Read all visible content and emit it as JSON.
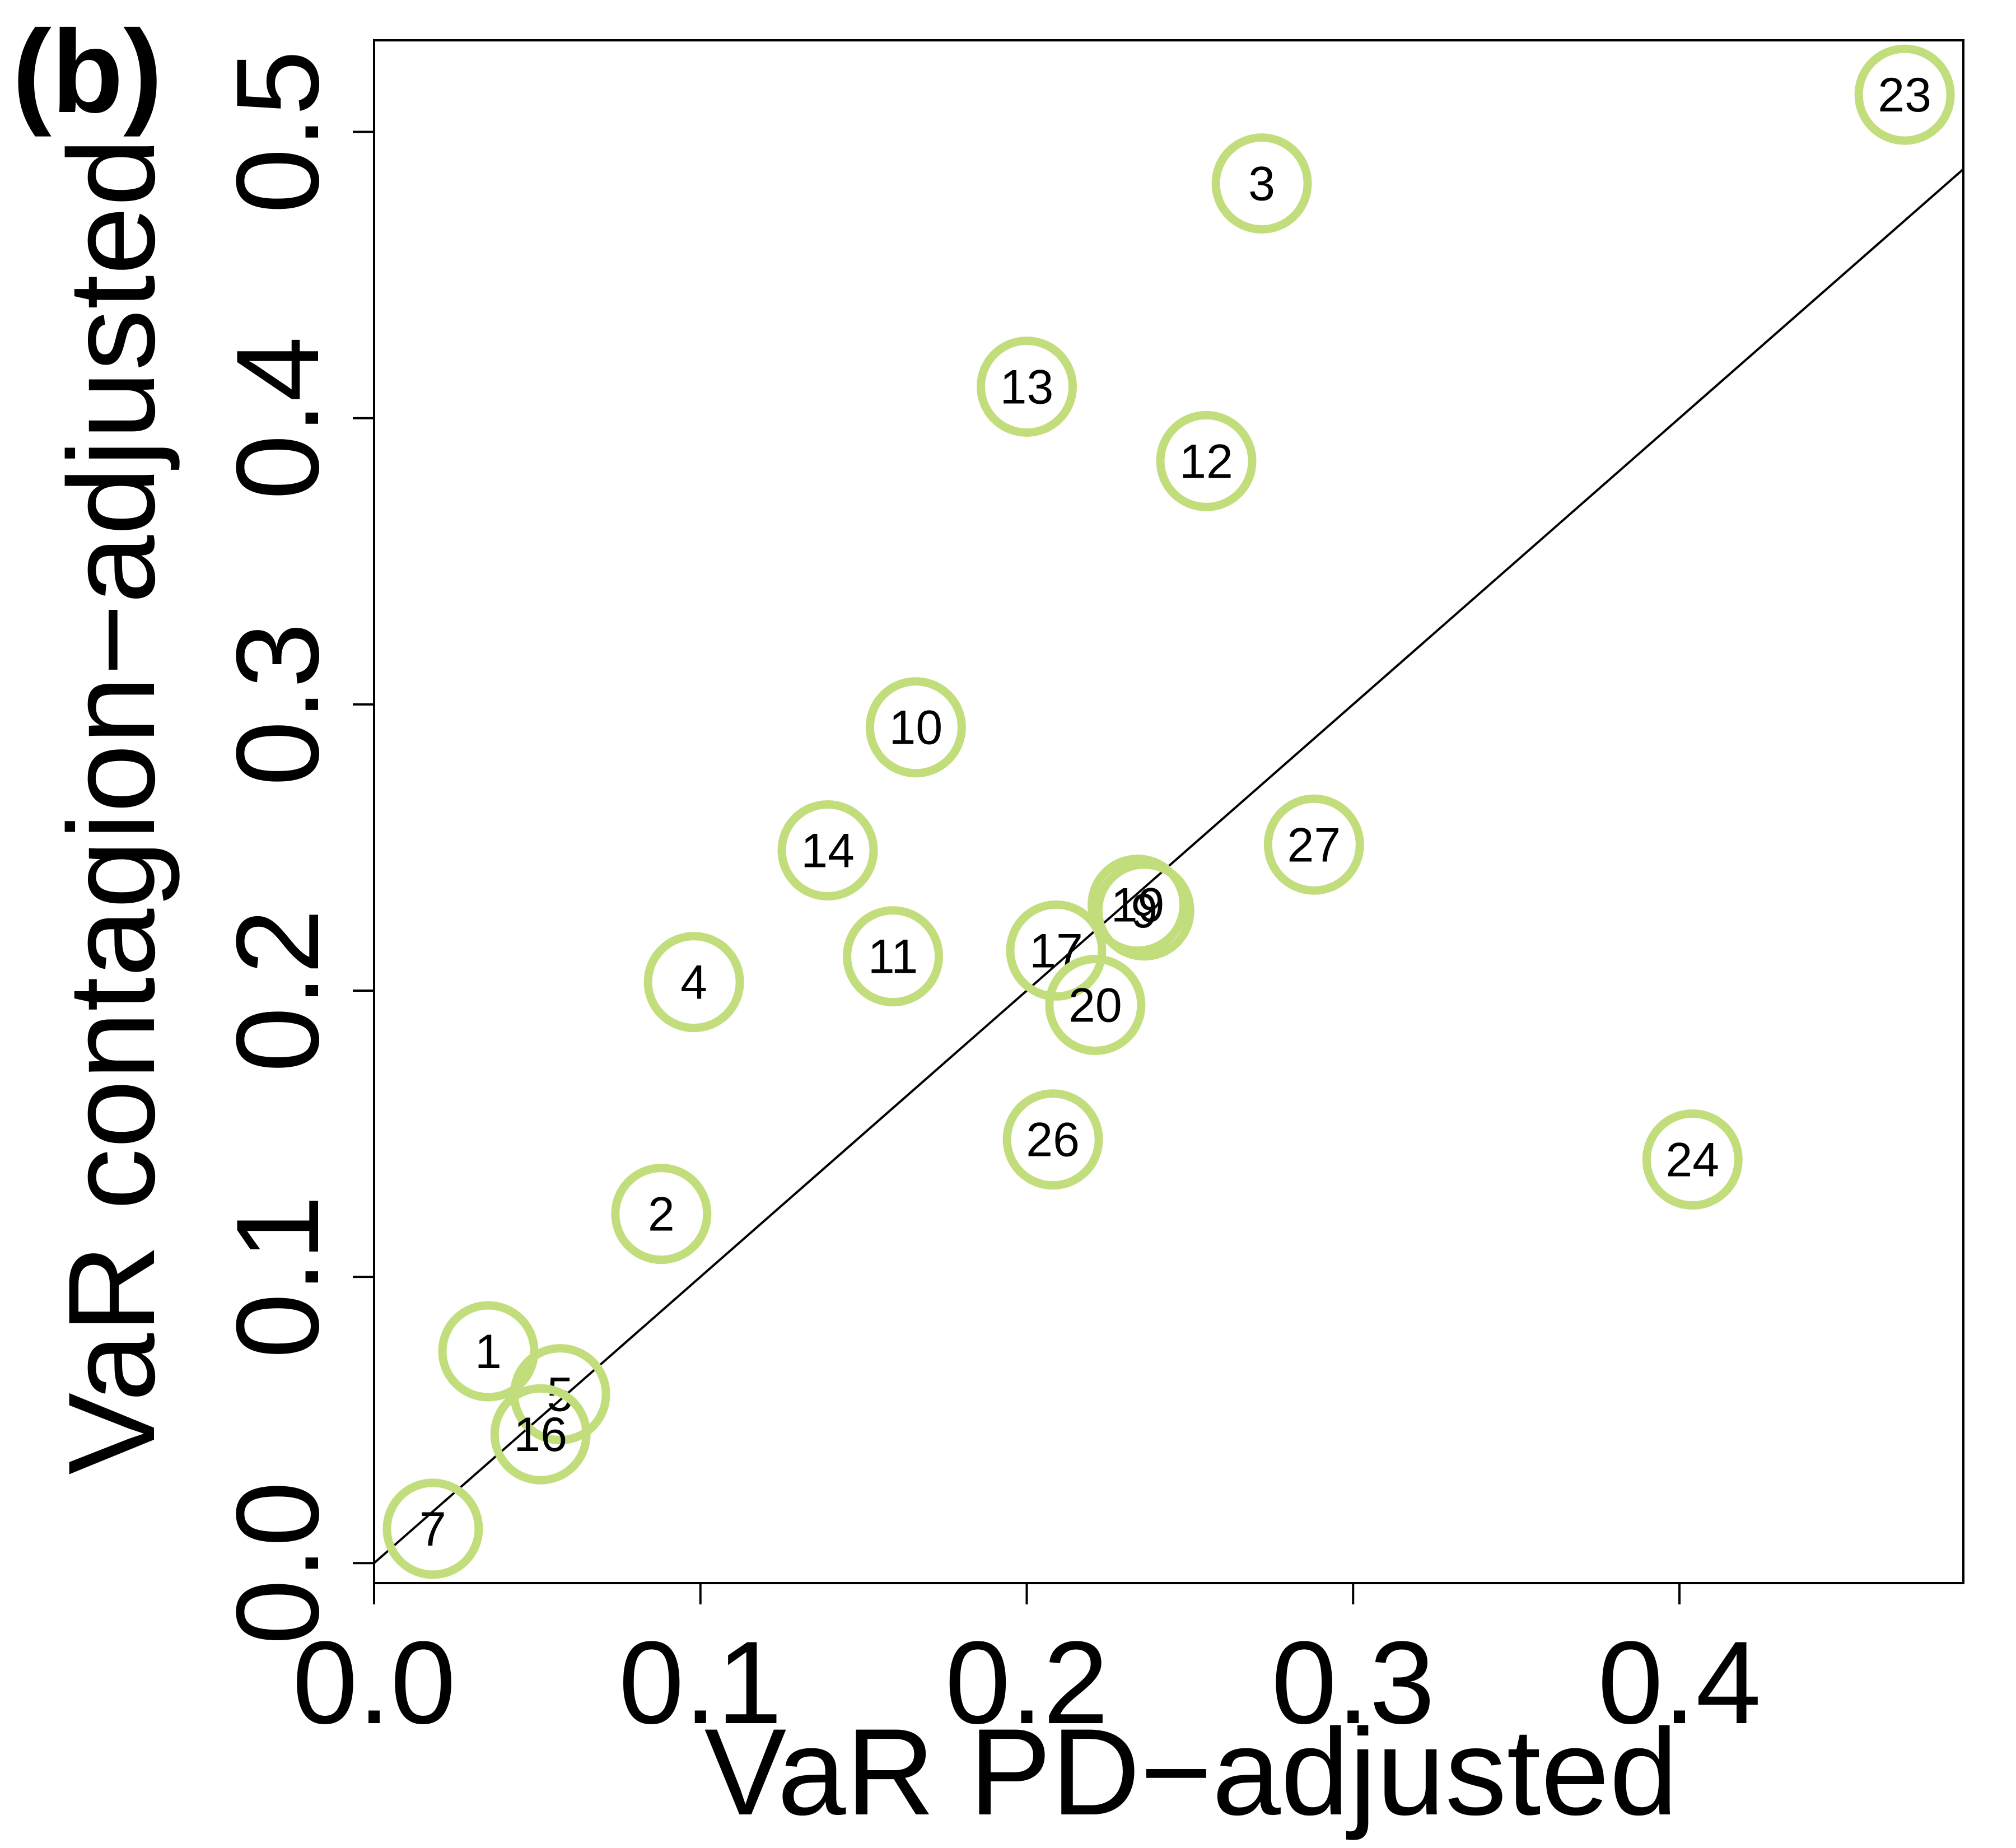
{
  "chart_data": {
    "type": "scatter",
    "panel_label": "(b)",
    "xlabel": "VaR PD−adjusted",
    "ylabel": "VaR contagion−adjusted",
    "xlim": [
      0.0,
      0.487
    ],
    "ylim": [
      -0.007,
      0.532
    ],
    "xticks": [
      "0.0",
      "0.1",
      "0.2",
      "0.3",
      "0.4"
    ],
    "yticks": [
      "0.0",
      "0.1",
      "0.2",
      "0.3",
      "0.4",
      "0.5"
    ],
    "reference_line": {
      "slope": 1,
      "intercept": 0
    },
    "marker_color": "#c2de7c",
    "points": [
      {
        "label": "1",
        "x": 0.035,
        "y": 0.074
      },
      {
        "label": "2",
        "x": 0.088,
        "y": 0.122
      },
      {
        "label": "3",
        "x": 0.272,
        "y": 0.482
      },
      {
        "label": "4",
        "x": 0.098,
        "y": 0.203
      },
      {
        "label": "5",
        "x": 0.057,
        "y": 0.059
      },
      {
        "label": "7",
        "x": 0.018,
        "y": 0.012
      },
      {
        "label": "9",
        "x": 0.236,
        "y": 0.228
      },
      {
        "label": "10",
        "x": 0.166,
        "y": 0.292
      },
      {
        "label": "11",
        "x": 0.159,
        "y": 0.212
      },
      {
        "label": "12",
        "x": 0.255,
        "y": 0.385
      },
      {
        "label": "13",
        "x": 0.2,
        "y": 0.411
      },
      {
        "label": "14",
        "x": 0.139,
        "y": 0.249
      },
      {
        "label": "16",
        "x": 0.051,
        "y": 0.045
      },
      {
        "label": "17",
        "x": 0.209,
        "y": 0.214
      },
      {
        "label": "19",
        "x": 0.234,
        "y": 0.23
      },
      {
        "label": "20",
        "x": 0.221,
        "y": 0.195
      },
      {
        "label": "23",
        "x": 0.469,
        "y": 0.513
      },
      {
        "label": "24",
        "x": 0.404,
        "y": 0.141
      },
      {
        "label": "26",
        "x": 0.208,
        "y": 0.148
      },
      {
        "label": "27",
        "x": 0.288,
        "y": 0.251
      }
    ]
  }
}
